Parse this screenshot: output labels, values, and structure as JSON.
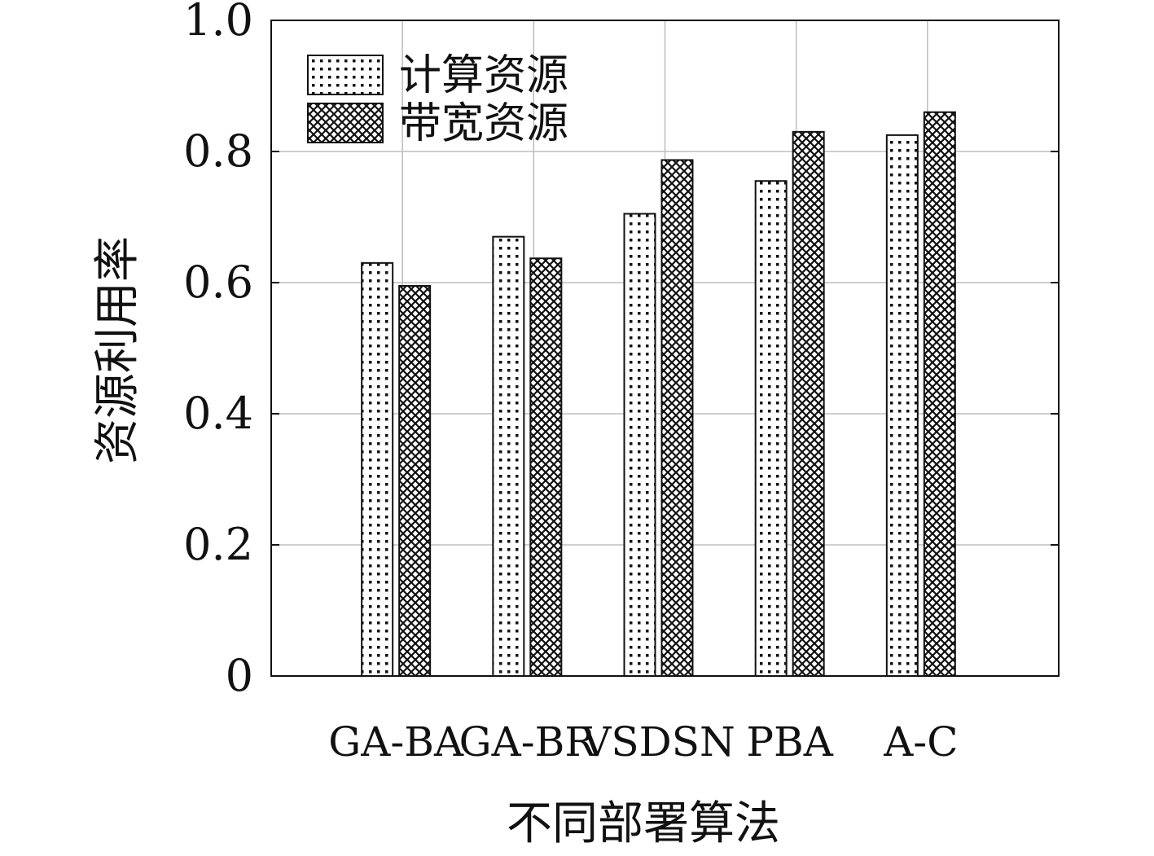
{
  "chart_data": {
    "type": "bar",
    "title": "",
    "xlabel": "不同部署算法",
    "ylabel": "资源利用率",
    "categories": [
      "GA-BA",
      "GA-BR",
      "VSDSN",
      "PBA",
      "A-C"
    ],
    "series": [
      {
        "name": "计算资源",
        "values": [
          0.63,
          0.67,
          0.705,
          0.755,
          0.825
        ]
      },
      {
        "name": "带宽资源",
        "values": [
          0.595,
          0.637,
          0.787,
          0.83,
          0.86
        ]
      }
    ],
    "ylim": [
      0,
      1.0
    ],
    "yticks": [
      "0",
      "0.2",
      "0.4",
      "0.6",
      "0.8",
      "1.0"
    ],
    "grid": true,
    "legend_position": "top-left"
  }
}
